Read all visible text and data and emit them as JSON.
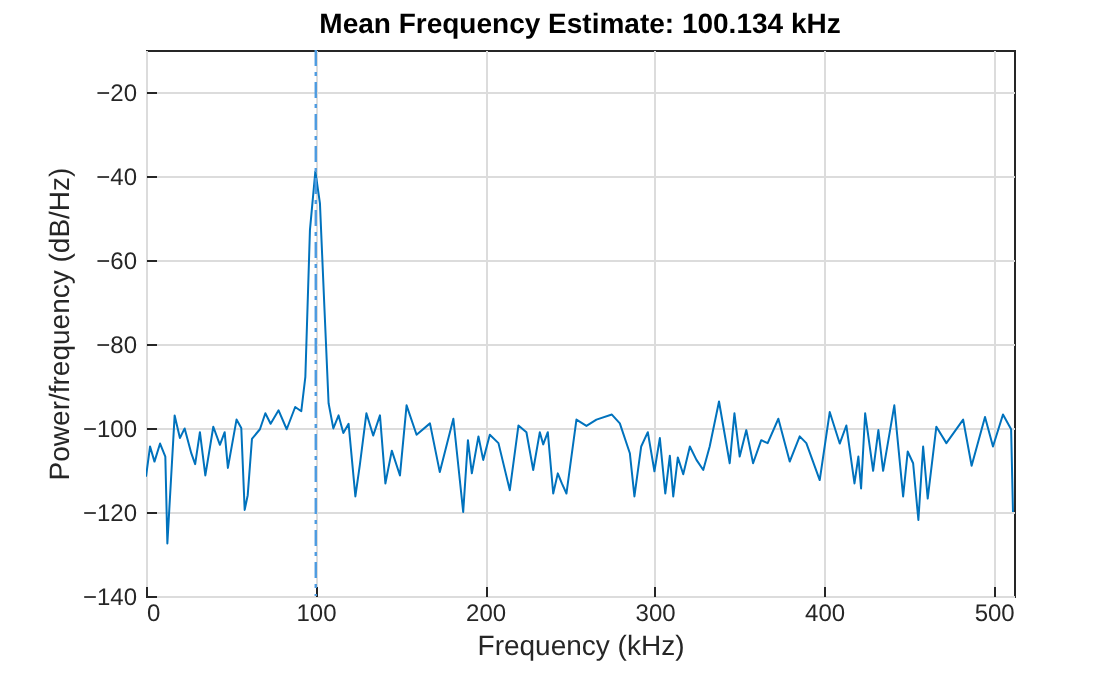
{
  "chart_data": {
    "type": "line",
    "title": "Mean Frequency Estimate: 100.134 kHz",
    "xlabel": "Frequency (kHz)",
    "ylabel": "Power/frequency (dB/Hz)",
    "xlim": [
      0,
      512
    ],
    "xticks": [
      0,
      100,
      200,
      300,
      400,
      500
    ],
    "ylim": [
      -140,
      -10
    ],
    "yticks": [
      -140,
      -120,
      -100,
      -80,
      -60,
      -40,
      -20
    ],
    "grid": true,
    "line_style": "solid",
    "marker": "none",
    "ref_lines": [
      {
        "axis": "x",
        "value": 100.134,
        "color": "#4d9be0",
        "line_style": "dashed"
      }
    ],
    "series": [
      {
        "color": "#0072bd",
        "x": [
          0,
          2.4,
          5,
          8.3,
          11.4,
          12.6,
          16.9,
          20,
          22.8,
          26.7,
          29,
          31.8,
          35,
          39.7,
          43.6,
          46.4,
          48.3,
          53.4,
          56.2,
          58.2,
          60,
          62.5,
          67.2,
          70.4,
          73.5,
          78.2,
          83,
          88,
          91.6,
          94,
          96.7,
          99.9,
          102.6,
          105.3,
          107.7,
          110.5,
          113.6,
          116.4,
          119.5,
          123.5,
          126.2,
          130,
          134,
          138,
          141.2,
          145,
          149.8,
          153.7,
          159.6,
          167.5,
          173.3,
          181.3,
          187.1,
          189.9,
          192.2,
          196.1,
          198.9,
          202.8,
          207.9,
          214.6,
          219.7,
          224.4,
          228.4,
          232.3,
          234.3,
          237,
          240.2,
          242.9,
          245.3,
          248,
          253.9,
          259.8,
          265.7,
          274.8,
          279.5,
          285.4,
          288.1,
          292.1,
          296,
          299.9,
          303.1,
          306.3,
          309,
          311,
          313.7,
          316.9,
          320.8,
          324.7,
          328.7,
          332.5,
          338,
          344.3,
          347.1,
          350.2,
          354.1,
          358.1,
          362.9,
          366.7,
          373,
          379.7,
          385.6,
          389.5,
          397.4,
          403.3,
          409.2,
          413.1,
          417.9,
          420.2,
          421.8,
          424.2,
          428.9,
          432,
          434.8,
          441.4,
          446.6,
          449.3,
          452.5,
          455.6,
          458.4,
          461.1,
          466.2,
          472.1,
          482,
          487,
          494.9,
          499.6,
          505.5,
          510.3,
          511.4
        ],
        "values": [
          -111.6,
          -104.4,
          -108,
          -103.7,
          -106.8,
          -127.5,
          -97,
          -102.4,
          -100.1,
          -106,
          -108.6,
          -101,
          -111.3,
          -99.7,
          -104,
          -101,
          -109.5,
          -98,
          -100,
          -119.5,
          -116,
          -102.6,
          -100.3,
          -96.5,
          -99,
          -95.8,
          -100.3,
          -95,
          -96,
          -87.8,
          -52.9,
          -38.9,
          -46.5,
          -71.9,
          -94.1,
          -100.1,
          -97,
          -101.2,
          -99,
          -116.3,
          -108.6,
          -96.5,
          -101.8,
          -97,
          -113.2,
          -105.4,
          -111.3,
          -94.6,
          -101.6,
          -98.9,
          -110.5,
          -97.8,
          -120,
          -102.9,
          -110.8,
          -102,
          -107.6,
          -101.6,
          -103.6,
          -114.8,
          -99.4,
          -101,
          -110,
          -101,
          -103.9,
          -101,
          -115.6,
          -110.8,
          -113.2,
          -115.6,
          -98,
          -99.5,
          -98,
          -96.8,
          -98.9,
          -106,
          -116.3,
          -104.4,
          -101,
          -110.3,
          -102.4,
          -115.6,
          -106.6,
          -116.3,
          -107,
          -111,
          -104.4,
          -107.6,
          -110,
          -104.4,
          -93.7,
          -108.4,
          -96.5,
          -106.8,
          -100.5,
          -108.4,
          -102.9,
          -103.6,
          -97.8,
          -108,
          -102,
          -103.6,
          -112.4,
          -96.2,
          -103.7,
          -99.4,
          -113.2,
          -106.8,
          -114.4,
          -96.5,
          -110.2,
          -100.5,
          -110.2,
          -94.6,
          -116.3,
          -105.6,
          -108.4,
          -121.9,
          -104.4,
          -116.8,
          -99.7,
          -103.6,
          -98,
          -109,
          -97.4,
          -104.4,
          -96.8,
          -100.3,
          -120
        ]
      }
    ]
  }
}
